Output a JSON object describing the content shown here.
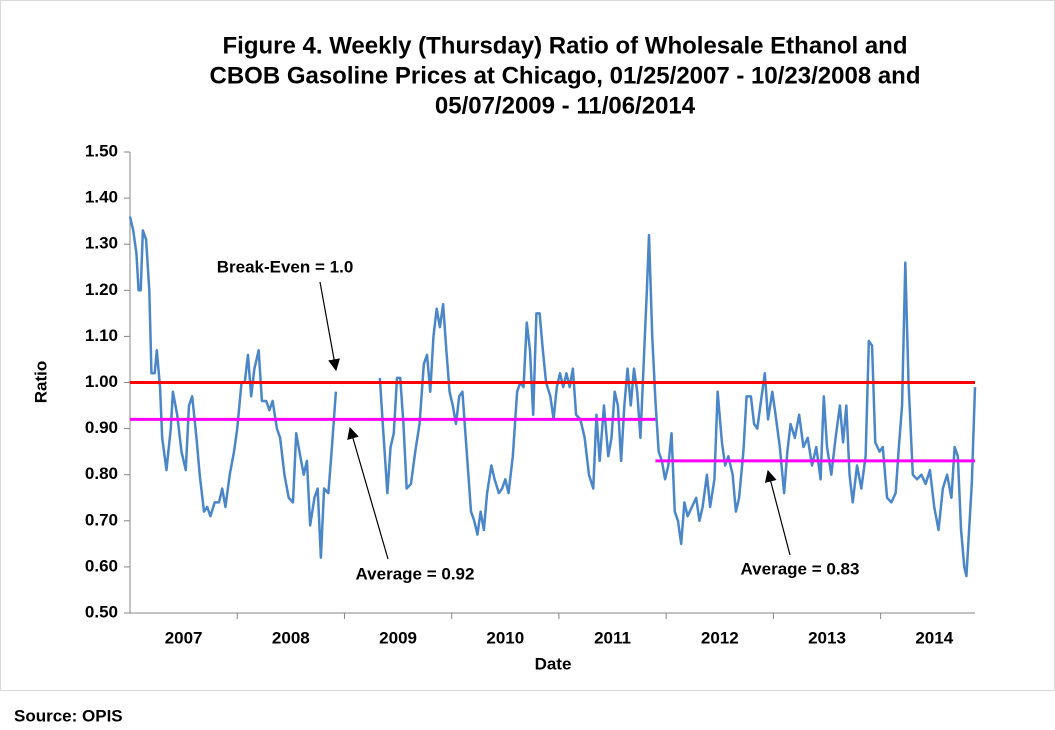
{
  "chart_data": {
    "type": "line",
    "title": [
      "Figure 4. Weekly (Thursday) Ratio of Wholesale Ethanol and",
      "CBOB Gasoline Prices at Chicago, 01/25/2007 - 10/23/2008 and",
      "05/07/2009 - 11/06/2014"
    ],
    "y_label": "Ratio",
    "x_label": "Date",
    "source": "Source: OPIS",
    "color": "#4a86c8",
    "xlim": [
      2007,
      2014.88
    ],
    "ylim": [
      0.5,
      1.5
    ],
    "yticks": [
      {
        "value": 0.5,
        "label": "0.50"
      },
      {
        "value": 0.6,
        "label": "0.60"
      },
      {
        "value": 0.7,
        "label": "0.70"
      },
      {
        "value": 0.8,
        "label": "0.80"
      },
      {
        "value": 0.9,
        "label": "0.90"
      },
      {
        "value": 1.0,
        "label": "1.00"
      },
      {
        "value": 1.1,
        "label": "1.10"
      },
      {
        "value": 1.2,
        "label": "1.20"
      },
      {
        "value": 1.3,
        "label": "1.30"
      },
      {
        "value": 1.4,
        "label": "1.40"
      },
      {
        "value": 1.5,
        "label": "1.50"
      }
    ],
    "xticks": [
      {
        "value": 2007.5,
        "label": "2007"
      },
      {
        "value": 2008.5,
        "label": "2008"
      },
      {
        "value": 2009.5,
        "label": "2009"
      },
      {
        "value": 2010.5,
        "label": "2010"
      },
      {
        "value": 2011.5,
        "label": "2011"
      },
      {
        "value": 2012.5,
        "label": "2012"
      },
      {
        "value": 2013.5,
        "label": "2013"
      },
      {
        "value": 2014.5,
        "label": "2014"
      }
    ],
    "x_minor_ticks": [
      2008,
      2009,
      2010,
      2011,
      2012,
      2013,
      2014
    ],
    "hlines": [
      {
        "value": 1.0,
        "color": "#ff0000",
        "from": 2007,
        "to": 2014.88
      },
      {
        "value": 0.92,
        "color": "#ff00ff",
        "from": 2007,
        "to": 2011.9
      },
      {
        "value": 0.83,
        "color": "#ff00ff",
        "from": 2011.9,
        "to": 2014.88
      }
    ],
    "annotations": [
      "Break-Even = 1.0",
      "Average = 0.92",
      "Average = 0.83"
    ],
    "x": [
      2007.0,
      2007.03,
      2007.06,
      2007.08,
      2007.1,
      2007.12,
      2007.15,
      2007.18,
      2007.2,
      2007.23,
      2007.25,
      2007.28,
      2007.3,
      2007.34,
      2007.38,
      2007.4,
      2007.44,
      2007.48,
      2007.52,
      2007.55,
      2007.58,
      2007.62,
      2007.65,
      2007.69,
      2007.72,
      2007.75,
      2007.79,
      2007.83,
      2007.86,
      2007.89,
      2007.93,
      2007.97,
      2008.0,
      2008.04,
      2008.07,
      2008.1,
      2008.13,
      2008.16,
      2008.2,
      2008.23,
      2008.27,
      2008.3,
      2008.33,
      2008.37,
      2008.4,
      2008.44,
      2008.48,
      2008.52,
      2008.55,
      2008.58,
      2008.62,
      2008.65,
      2008.68,
      2008.72,
      2008.75,
      2008.78,
      2008.81,
      2008.85,
      2008.88,
      2008.92,
      2009.1,
      2009.33,
      2009.36,
      2009.4,
      2009.43,
      2009.46,
      2009.49,
      2009.52,
      2009.55,
      2009.58,
      2009.62,
      2009.66,
      2009.7,
      2009.74,
      2009.77,
      2009.8,
      2009.83,
      2009.86,
      2009.89,
      2009.92,
      2009.95,
      2009.98,
      2010.01,
      2010.04,
      2010.07,
      2010.1,
      2010.14,
      2010.18,
      2010.21,
      2010.24,
      2010.27,
      2010.3,
      2010.33,
      2010.37,
      2010.4,
      2010.44,
      2010.47,
      2010.5,
      2010.53,
      2010.57,
      2010.61,
      2010.64,
      2010.67,
      2010.7,
      2010.73,
      2010.76,
      2010.79,
      2010.82,
      2010.85,
      2010.88,
      2010.92,
      2010.95,
      2010.98,
      2011.01,
      2011.04,
      2011.07,
      2011.1,
      2011.13,
      2011.16,
      2011.2,
      2011.24,
      2011.28,
      2011.32,
      2011.35,
      2011.38,
      2011.42,
      2011.46,
      2011.49,
      2011.52,
      2011.55,
      2011.58,
      2011.61,
      2011.64,
      2011.67,
      2011.7,
      2011.73,
      2011.76,
      2011.79,
      2011.82,
      2011.84,
      2011.87,
      2011.9,
      2011.93,
      2011.96,
      2011.99,
      2012.02,
      2012.05,
      2012.08,
      2012.11,
      2012.14,
      2012.17,
      2012.2,
      2012.24,
      2012.28,
      2012.31,
      2012.34,
      2012.38,
      2012.41,
      2012.45,
      2012.48,
      2012.52,
      2012.55,
      2012.58,
      2012.62,
      2012.65,
      2012.68,
      2012.72,
      2012.75,
      2012.79,
      2012.82,
      2012.85,
      2012.89,
      2012.92,
      2012.95,
      2012.99,
      2013.02,
      2013.06,
      2013.1,
      2013.13,
      2013.16,
      2013.2,
      2013.24,
      2013.28,
      2013.32,
      2013.36,
      2013.4,
      2013.44,
      2013.47,
      2013.5,
      2013.54,
      2013.58,
      2013.62,
      2013.65,
      2013.68,
      2013.71,
      2013.74,
      2013.78,
      2013.82,
      2013.86,
      2013.89,
      2013.92,
      2013.95,
      2013.99,
      2014.02,
      2014.06,
      2014.1,
      2014.14,
      2014.17,
      2014.2,
      2014.23,
      2014.26,
      2014.3,
      2014.34,
      2014.38,
      2014.42,
      2014.46,
      2014.5,
      2014.54,
      2014.58,
      2014.62,
      2014.66,
      2014.69,
      2014.72,
      2014.75,
      2014.78,
      2014.8,
      2014.82,
      2014.85,
      2014.88
    ],
    "values": [
      1.36,
      1.33,
      1.28,
      1.2,
      1.2,
      1.33,
      1.31,
      1.2,
      1.02,
      1.02,
      1.07,
      0.99,
      0.88,
      0.81,
      0.9,
      0.98,
      0.93,
      0.85,
      0.81,
      0.95,
      0.97,
      0.88,
      0.8,
      0.72,
      0.73,
      0.71,
      0.74,
      0.74,
      0.77,
      0.73,
      0.8,
      0.85,
      0.9,
      1.0,
      1.0,
      1.06,
      0.97,
      1.03,
      1.07,
      0.96,
      0.96,
      0.94,
      0.96,
      0.9,
      0.88,
      0.8,
      0.75,
      0.74,
      0.89,
      0.85,
      0.8,
      0.83,
      0.69,
      0.75,
      0.77,
      0.62,
      0.77,
      0.76,
      0.85,
      0.98,
      null,
      1.01,
      0.9,
      0.76,
      0.86,
      0.89,
      1.01,
      1.01,
      0.91,
      0.77,
      0.78,
      0.85,
      0.91,
      1.04,
      1.06,
      0.98,
      1.1,
      1.16,
      1.12,
      1.17,
      1.07,
      0.98,
      0.95,
      0.91,
      0.97,
      0.98,
      0.85,
      0.72,
      0.7,
      0.67,
      0.72,
      0.68,
      0.76,
      0.82,
      0.79,
      0.76,
      0.77,
      0.79,
      0.76,
      0.84,
      0.98,
      1.0,
      0.99,
      1.13,
      1.07,
      0.93,
      1.15,
      1.15,
      1.07,
      1.0,
      0.97,
      0.92,
      0.99,
      1.02,
      0.99,
      1.02,
      0.99,
      1.03,
      0.93,
      0.92,
      0.88,
      0.8,
      0.77,
      0.93,
      0.83,
      0.95,
      0.84,
      0.88,
      0.98,
      0.95,
      0.83,
      0.95,
      1.03,
      0.95,
      1.03,
      0.98,
      0.88,
      1.04,
      1.2,
      1.32,
      1.1,
      0.96,
      0.85,
      0.83,
      0.79,
      0.82,
      0.89,
      0.72,
      0.7,
      0.65,
      0.74,
      0.71,
      0.73,
      0.75,
      0.7,
      0.73,
      0.8,
      0.73,
      0.79,
      0.98,
      0.87,
      0.82,
      0.84,
      0.8,
      0.72,
      0.75,
      0.85,
      0.97,
      0.97,
      0.91,
      0.9,
      0.97,
      1.02,
      0.92,
      0.98,
      0.93,
      0.86,
      0.76,
      0.85,
      0.91,
      0.88,
      0.93,
      0.86,
      0.88,
      0.82,
      0.86,
      0.79,
      0.97,
      0.86,
      0.8,
      0.88,
      0.95,
      0.87,
      0.95,
      0.8,
      0.74,
      0.82,
      0.77,
      0.84,
      1.09,
      1.08,
      0.87,
      0.85,
      0.86,
      0.75,
      0.74,
      0.76,
      0.86,
      0.95,
      1.26,
      1.0,
      0.8,
      0.79,
      0.8,
      0.78,
      0.81,
      0.73,
      0.68,
      0.77,
      0.8,
      0.75,
      0.86,
      0.84,
      0.68,
      0.6,
      0.58,
      0.66,
      0.78,
      0.99
    ]
  }
}
